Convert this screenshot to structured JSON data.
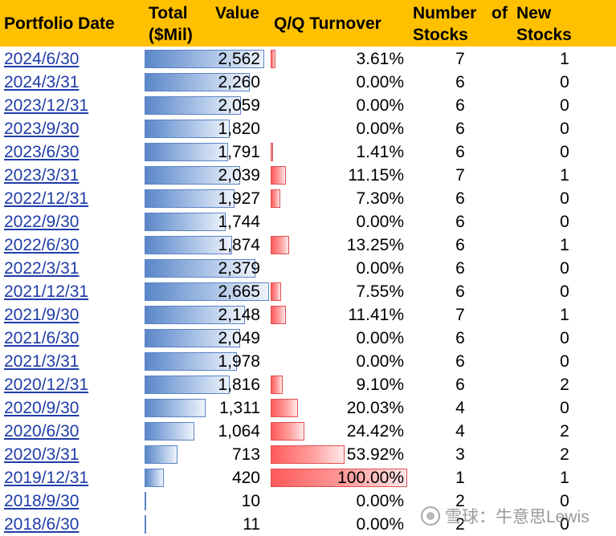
{
  "header": {
    "col_date": "Portfolio Date",
    "col_value_line1": "Total",
    "col_value_line1b": "Value",
    "col_value_line2": "($Mil)",
    "col_turnover": "Q/Q Turnover",
    "col_num_line1": "Number",
    "col_num_line1b": "of",
    "col_num_line2": "Stocks",
    "col_new_line1": "New",
    "col_new_line2": "Stocks"
  },
  "colors": {
    "header_bg": "#ffc000",
    "value_bar": "#5a86c8",
    "turnover_bar": "#ff5a5a",
    "date_link": "#1f3ca8"
  },
  "rows": [
    {
      "date": "2024/6/30",
      "value": "2,562",
      "value_num": 2562,
      "turnover": "3.61%",
      "turnover_num": 3.61,
      "num_stocks": "7",
      "new_stocks": "1"
    },
    {
      "date": "2024/3/31",
      "value": "2,260",
      "value_num": 2260,
      "turnover": "0.00%",
      "turnover_num": 0,
      "num_stocks": "6",
      "new_stocks": "0"
    },
    {
      "date": "2023/12/31",
      "value": "2,059",
      "value_num": 2059,
      "turnover": "0.00%",
      "turnover_num": 0,
      "num_stocks": "6",
      "new_stocks": "0"
    },
    {
      "date": "2023/9/30",
      "value": "1,820",
      "value_num": 1820,
      "turnover": "0.00%",
      "turnover_num": 0,
      "num_stocks": "6",
      "new_stocks": "0"
    },
    {
      "date": "2023/6/30",
      "value": "1,791",
      "value_num": 1791,
      "turnover": "1.41%",
      "turnover_num": 1.41,
      "num_stocks": "6",
      "new_stocks": "0"
    },
    {
      "date": "2023/3/31",
      "value": "2,039",
      "value_num": 2039,
      "turnover": "11.15%",
      "turnover_num": 11.15,
      "num_stocks": "7",
      "new_stocks": "1"
    },
    {
      "date": "2022/12/31",
      "value": "1,927",
      "value_num": 1927,
      "turnover": "7.30%",
      "turnover_num": 7.3,
      "num_stocks": "6",
      "new_stocks": "0"
    },
    {
      "date": "2022/9/30",
      "value": "1,744",
      "value_num": 1744,
      "turnover": "0.00%",
      "turnover_num": 0,
      "num_stocks": "6",
      "new_stocks": "0"
    },
    {
      "date": "2022/6/30",
      "value": "1,874",
      "value_num": 1874,
      "turnover": "13.25%",
      "turnover_num": 13.25,
      "num_stocks": "6",
      "new_stocks": "1"
    },
    {
      "date": "2022/3/31",
      "value": "2,379",
      "value_num": 2379,
      "turnover": "0.00%",
      "turnover_num": 0,
      "num_stocks": "6",
      "new_stocks": "0"
    },
    {
      "date": "2021/12/31",
      "value": "2,665",
      "value_num": 2665,
      "turnover": "7.55%",
      "turnover_num": 7.55,
      "num_stocks": "6",
      "new_stocks": "0"
    },
    {
      "date": "2021/9/30",
      "value": "2,148",
      "value_num": 2148,
      "turnover": "11.41%",
      "turnover_num": 11.41,
      "num_stocks": "7",
      "new_stocks": "1"
    },
    {
      "date": "2021/6/30",
      "value": "2,049",
      "value_num": 2049,
      "turnover": "0.00%",
      "turnover_num": 0,
      "num_stocks": "6",
      "new_stocks": "0"
    },
    {
      "date": "2021/3/31",
      "value": "1,978",
      "value_num": 1978,
      "turnover": "0.00%",
      "turnover_num": 0,
      "num_stocks": "6",
      "new_stocks": "0"
    },
    {
      "date": "2020/12/31",
      "value": "1,816",
      "value_num": 1816,
      "turnover": "9.10%",
      "turnover_num": 9.1,
      "num_stocks": "6",
      "new_stocks": "2"
    },
    {
      "date": "2020/9/30",
      "value": "1,311",
      "value_num": 1311,
      "turnover": "20.03%",
      "turnover_num": 20.03,
      "num_stocks": "4",
      "new_stocks": "0"
    },
    {
      "date": "2020/6/30",
      "value": "1,064",
      "value_num": 1064,
      "turnover": "24.42%",
      "turnover_num": 24.42,
      "num_stocks": "4",
      "new_stocks": "2"
    },
    {
      "date": "2020/3/31",
      "value": "713",
      "value_num": 713,
      "turnover": "53.92%",
      "turnover_num": 53.92,
      "num_stocks": "3",
      "new_stocks": "2"
    },
    {
      "date": "2019/12/31",
      "value": "420",
      "value_num": 420,
      "turnover": "100.00%",
      "turnover_num": 100,
      "num_stocks": "1",
      "new_stocks": "1"
    },
    {
      "date": "2018/9/30",
      "value": "10",
      "value_num": 10,
      "turnover": "0.00%",
      "turnover_num": 0,
      "num_stocks": "2",
      "new_stocks": "0"
    },
    {
      "date": "2018/6/30",
      "value": "11",
      "value_num": 11,
      "turnover": "0.00%",
      "turnover_num": 0,
      "num_stocks": "2",
      "new_stocks": "0"
    }
  ],
  "watermark": {
    "text": "雪球：牛意思Lewis"
  }
}
